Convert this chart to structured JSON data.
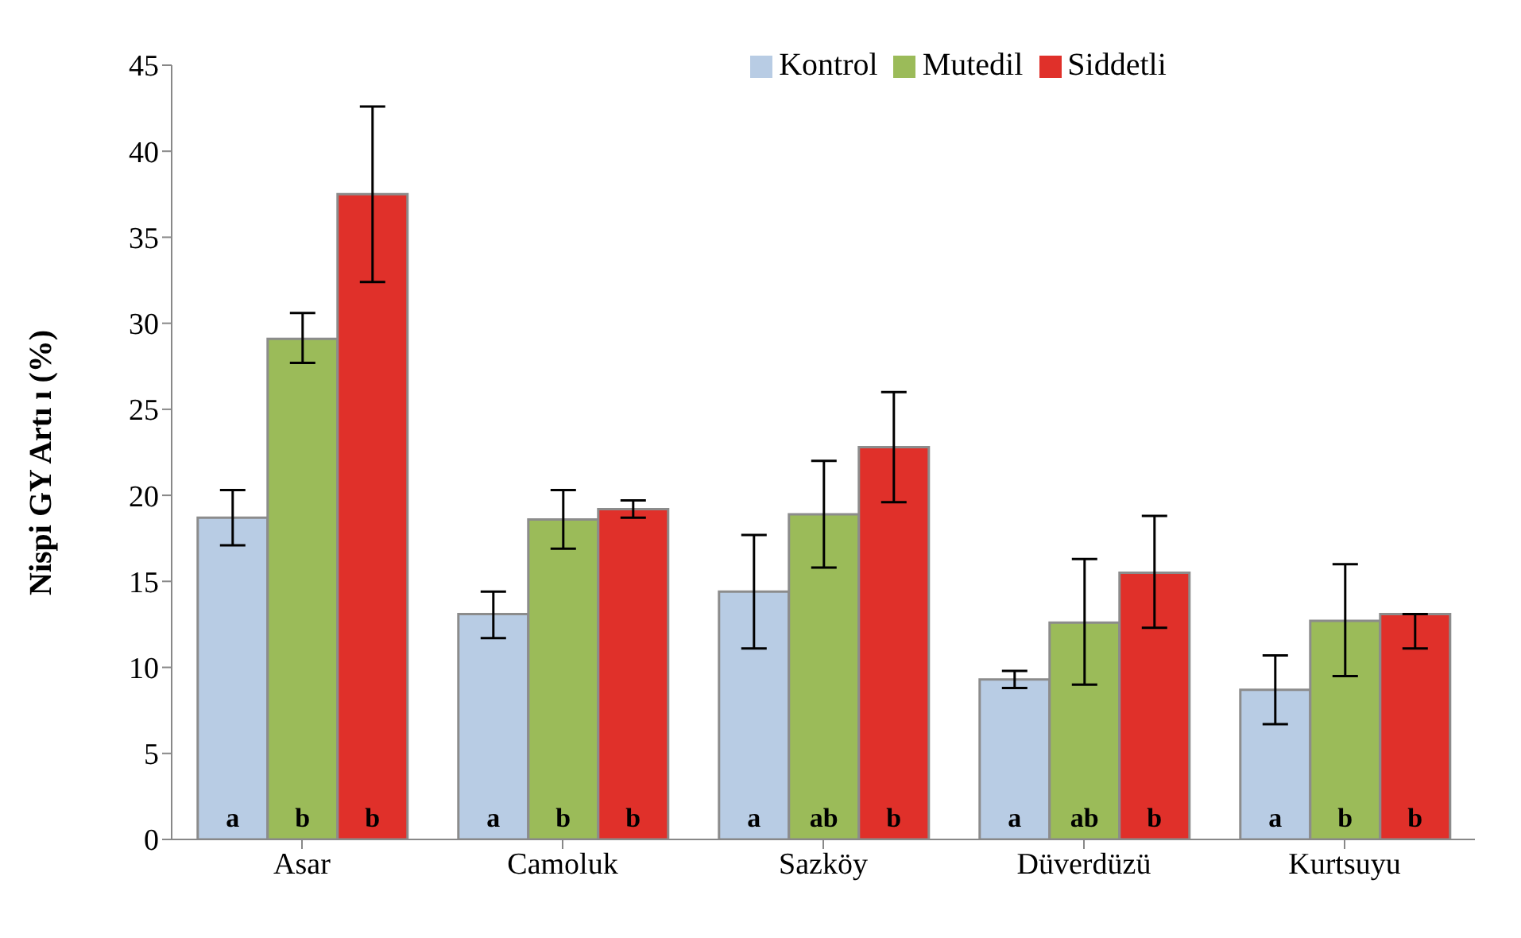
{
  "chart_data": {
    "type": "bar",
    "ylabel": "Nispi GY Artı ı (%)",
    "categories": [
      "Asar",
      "Camoluk",
      "Sazköy",
      "Düverdüzü",
      "Kurtsuyu"
    ],
    "series": [
      {
        "name": "Kontrol",
        "color": "#b8cce4",
        "values": [
          18.7,
          13.1,
          14.4,
          9.3,
          8.7
        ],
        "errors": [
          [
            17.1,
            20.3
          ],
          [
            11.7,
            14.4
          ],
          [
            11.1,
            17.7
          ],
          [
            8.8,
            9.8
          ],
          [
            6.7,
            10.7
          ]
        ],
        "value_labels": [
          "a",
          "a",
          "a",
          "a",
          "a"
        ]
      },
      {
        "name": "Mutedil",
        "color": "#9bbb59",
        "values": [
          29.1,
          18.6,
          18.9,
          12.6,
          12.7
        ],
        "errors": [
          [
            27.7,
            30.6
          ],
          [
            16.9,
            20.3
          ],
          [
            15.8,
            22.0
          ],
          [
            9.0,
            16.3
          ],
          [
            9.5,
            16.0
          ]
        ],
        "value_labels": [
          "b",
          "b",
          "ab",
          "ab",
          "b"
        ]
      },
      {
        "name": "Siddetli",
        "color": "#e0302a",
        "values": [
          37.5,
          19.2,
          22.8,
          15.5,
          13.1
        ],
        "errors": [
          [
            32.4,
            42.6
          ],
          [
            18.7,
            19.7
          ],
          [
            19.6,
            26.0
          ],
          [
            12.3,
            18.8
          ],
          [
            11.1,
            13.1
          ]
        ],
        "value_labels": [
          "b",
          "b",
          "b",
          "b",
          "b"
        ]
      }
    ],
    "ylim": [
      0,
      45
    ],
    "yticks": [
      0,
      5,
      10,
      15,
      20,
      25,
      30,
      35,
      40,
      45
    ],
    "grid": false,
    "legend": "top"
  }
}
